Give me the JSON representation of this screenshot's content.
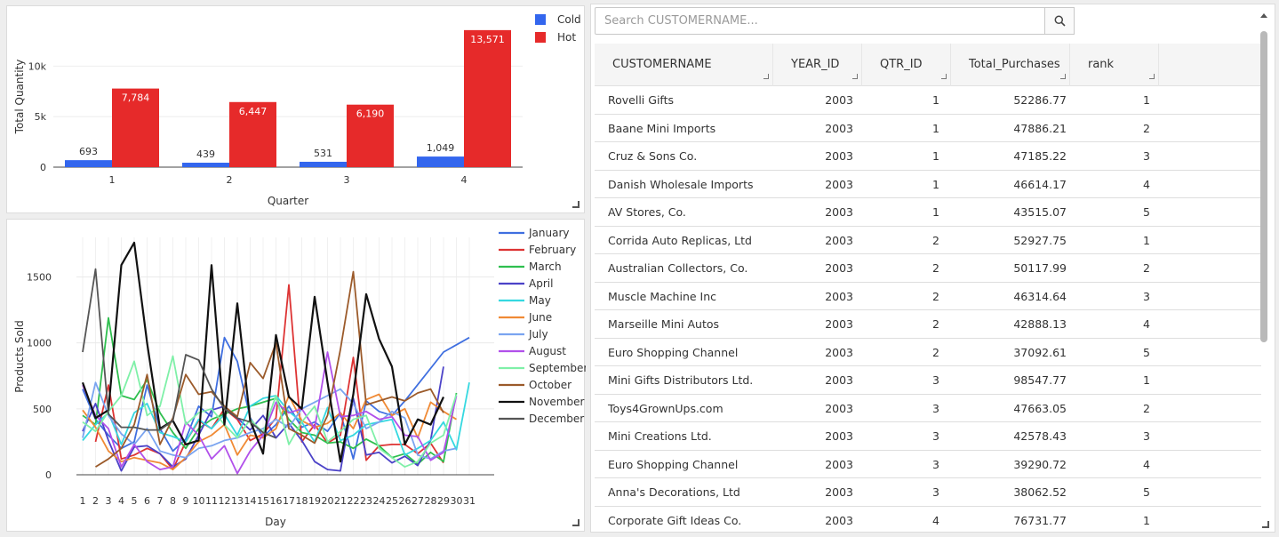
{
  "bar_chart": {
    "chart_data": {
      "type": "bar",
      "categories": [
        "1",
        "2",
        "3",
        "4"
      ],
      "series": [
        {
          "name": "Cold",
          "values": [
            693,
            439,
            531,
            1049
          ],
          "labels": [
            "693",
            "439",
            "531",
            "1,049"
          ],
          "color": "#3366ee"
        },
        {
          "name": "Hot",
          "values": [
            7784,
            6447,
            6190,
            13571
          ],
          "labels": [
            "7,784",
            "6,447",
            "6,190",
            "13,571"
          ],
          "color": "#e62a2a"
        }
      ],
      "xlabel": "Quarter",
      "ylabel": "Total Quantity",
      "ylim": [
        0,
        14000
      ],
      "yticks": [
        0,
        5000,
        10000
      ],
      "ytick_labels": [
        "0",
        "5k",
        "10k"
      ],
      "legend": "top-right",
      "grid": true
    }
  },
  "line_chart": {
    "chart_data": {
      "type": "line",
      "x": [
        1,
        2,
        3,
        4,
        5,
        6,
        7,
        8,
        9,
        10,
        11,
        12,
        13,
        14,
        15,
        16,
        17,
        18,
        19,
        20,
        21,
        22,
        23,
        24,
        25,
        26,
        27,
        28,
        29,
        30,
        31
      ],
      "xlabel": "Day",
      "ylabel": "Products Sold",
      "ylim": [
        0,
        1800
      ],
      "yticks": [
        0,
        500,
        1000,
        1500
      ],
      "ytick_labels": [
        "0",
        "500",
        "1000",
        "1500"
      ],
      "legend": "right",
      "grid": true,
      "series": [
        {
          "name": "January",
          "color": "#3f6fe0",
          "x": [
            1,
            2,
            3,
            4,
            5,
            6,
            7,
            8,
            9,
            10,
            11,
            12,
            13,
            14,
            15,
            16,
            17,
            18,
            19,
            20,
            21,
            22,
            23,
            24,
            25,
            26,
            29,
            31
          ],
          "values": [
            650,
            420,
            300,
            200,
            250,
            680,
            350,
            180,
            270,
            520,
            440,
            1040,
            860,
            430,
            290,
            380,
            520,
            360,
            400,
            330,
            470,
            120,
            560,
            480,
            450,
            560,
            930,
            1040
          ]
        },
        {
          "name": "February",
          "color": "#dd3333",
          "x": [
            2,
            3,
            4,
            5,
            6,
            7,
            8,
            9,
            10,
            11,
            12,
            13,
            14,
            15,
            16,
            17,
            18,
            19,
            20,
            21,
            22,
            23,
            24,
            25,
            26,
            27,
            28,
            29
          ],
          "values": [
            250,
            680,
            120,
            150,
            200,
            160,
            40,
            250,
            410,
            350,
            500,
            420,
            260,
            310,
            430,
            1440,
            250,
            380,
            240,
            300,
            890,
            110,
            220,
            230,
            230,
            160,
            240,
            90
          ]
        },
        {
          "name": "March",
          "color": "#2fbf4f",
          "x": [
            1,
            2,
            3,
            4,
            5,
            6,
            7,
            8,
            9,
            10,
            11,
            12,
            13,
            14,
            15,
            16,
            17,
            18,
            19,
            20,
            21,
            22,
            23,
            24,
            25,
            26,
            27,
            28,
            29,
            30
          ],
          "values": [
            450,
            380,
            1190,
            600,
            570,
            720,
            470,
            320,
            200,
            350,
            420,
            460,
            500,
            520,
            550,
            580,
            420,
            320,
            300,
            240,
            250,
            200,
            270,
            220,
            130,
            160,
            80,
            170,
            100,
            620
          ]
        },
        {
          "name": "April",
          "color": "#4b42c8",
          "x": [
            1,
            2,
            3,
            4,
            5,
            6,
            7,
            8,
            9,
            10,
            11,
            12,
            13,
            14,
            15,
            16,
            17,
            18,
            19,
            20,
            21,
            22,
            23,
            24,
            25,
            26,
            27,
            28,
            29
          ],
          "values": [
            330,
            540,
            260,
            30,
            210,
            220,
            160,
            60,
            120,
            300,
            490,
            520,
            430,
            340,
            450,
            280,
            390,
            260,
            100,
            40,
            30,
            580,
            150,
            170,
            90,
            140,
            70,
            260,
            820
          ]
        },
        {
          "name": "May",
          "color": "#35d8e0",
          "x": [
            1,
            2,
            3,
            4,
            5,
            6,
            7,
            8,
            9,
            10,
            11,
            12,
            13,
            14,
            15,
            16,
            17,
            18,
            19,
            20,
            21,
            22,
            23,
            24,
            25,
            26,
            27,
            28,
            29,
            30,
            31
          ],
          "values": [
            260,
            380,
            470,
            230,
            470,
            540,
            320,
            290,
            250,
            420,
            350,
            460,
            300,
            520,
            580,
            600,
            480,
            400,
            250,
            510,
            260,
            300,
            380,
            400,
            420,
            150,
            200,
            260,
            400,
            190,
            700
          ]
        },
        {
          "name": "June",
          "color": "#f08a35",
          "x": [
            1,
            2,
            3,
            4,
            5,
            6,
            7,
            8,
            9,
            10,
            11,
            12,
            13,
            14,
            15,
            16,
            17,
            18,
            19,
            20,
            21,
            22,
            23,
            24,
            25,
            26,
            27,
            28,
            29,
            30
          ],
          "values": [
            490,
            360,
            180,
            100,
            130,
            110,
            90,
            40,
            130,
            250,
            300,
            380,
            150,
            300,
            280,
            350,
            600,
            410,
            360,
            390,
            470,
            350,
            570,
            610,
            450,
            500,
            280,
            550,
            480,
            420
          ]
        },
        {
          "name": "July",
          "color": "#7aa4f0",
          "x": [
            1,
            2,
            3,
            4,
            5,
            6,
            7,
            8,
            9,
            10,
            11,
            12,
            13,
            14,
            15,
            16,
            17,
            18,
            19,
            20,
            21,
            22,
            23,
            24,
            25,
            26,
            27,
            28,
            29,
            30
          ],
          "values": [
            280,
            700,
            450,
            310,
            230,
            350,
            180,
            150,
            130,
            200,
            220,
            260,
            280,
            320,
            350,
            420,
            360,
            500,
            550,
            600,
            650,
            540,
            350,
            400,
            480,
            430,
            150,
            120,
            180,
            200
          ]
        },
        {
          "name": "August",
          "color": "#b150ea",
          "x": [
            1,
            2,
            3,
            4,
            5,
            6,
            7,
            8,
            9,
            10,
            11,
            12,
            13,
            14,
            15,
            16,
            17,
            18,
            19,
            20,
            21,
            22,
            23,
            24,
            25,
            26,
            27,
            28,
            29,
            30
          ],
          "values": [
            680,
            450,
            350,
            60,
            230,
            100,
            40,
            60,
            400,
            300,
            120,
            220,
            10,
            180,
            300,
            550,
            470,
            500,
            350,
            930,
            440,
            450,
            480,
            420,
            440,
            300,
            290,
            110,
            170,
            600
          ]
        },
        {
          "name": "September",
          "color": "#7ff0a8",
          "x": [
            1,
            2,
            3,
            4,
            5,
            6,
            7,
            8,
            9,
            10,
            11,
            12,
            13,
            14,
            15,
            16,
            17,
            18,
            19,
            20,
            21,
            22,
            23,
            24,
            25,
            26,
            27,
            28,
            29,
            30
          ],
          "values": [
            400,
            330,
            480,
            600,
            860,
            450,
            520,
            900,
            380,
            470,
            500,
            380,
            280,
            420,
            320,
            600,
            230,
            400,
            520,
            250,
            330,
            420,
            450,
            200,
            130,
            60,
            100,
            240,
            300,
            610
          ]
        },
        {
          "name": "October",
          "color": "#9b5a2a",
          "x": [
            2,
            3,
            4,
            5,
            6,
            7,
            8,
            9,
            10,
            11,
            12,
            13,
            14,
            15,
            16,
            17,
            18,
            19,
            20,
            21,
            22,
            23,
            24,
            25,
            26,
            27,
            28,
            29
          ],
          "values": [
            60,
            120,
            200,
            380,
            760,
            230,
            430,
            760,
            610,
            630,
            520,
            440,
            850,
            730,
            1000,
            350,
            300,
            240,
            450,
            950,
            1540,
            530,
            560,
            590,
            560,
            620,
            650,
            470
          ]
        },
        {
          "name": "November",
          "color": "#111111",
          "x": [
            1,
            2,
            3,
            4,
            5,
            6,
            7,
            8,
            9,
            10,
            11,
            12,
            13,
            14,
            15,
            16,
            17,
            18,
            19,
            20,
            21,
            22,
            23,
            24,
            25,
            26,
            27,
            28,
            29
          ],
          "values": [
            700,
            430,
            490,
            1590,
            1760,
            1000,
            350,
            410,
            230,
            260,
            1590,
            380,
            1300,
            410,
            160,
            1060,
            590,
            500,
            1350,
            700,
            100,
            610,
            1370,
            1030,
            820,
            230,
            420,
            380,
            590
          ]
        },
        {
          "name": "December",
          "color": "#555555",
          "x": [
            1,
            2,
            3,
            4,
            5,
            6,
            7,
            8,
            9,
            10,
            11,
            12,
            13,
            14,
            15,
            16
          ],
          "values": [
            930,
            1560,
            460,
            360,
            360,
            340,
            340,
            410,
            910,
            870,
            650,
            500,
            430,
            400,
            320,
            280
          ]
        }
      ]
    }
  },
  "table": {
    "search_placeholder": "Search CUSTOMERNAME...",
    "columns": [
      "CUSTOMERNAME",
      "YEAR_ID",
      "QTR_ID",
      "Total_Purchases",
      "rank"
    ],
    "rows": [
      [
        "Rovelli Gifts",
        "2003",
        "1",
        "52286.77",
        "1"
      ],
      [
        "Baane Mini Imports",
        "2003",
        "1",
        "47886.21",
        "2"
      ],
      [
        "Cruz & Sons Co.",
        "2003",
        "1",
        "47185.22",
        "3"
      ],
      [
        "Danish Wholesale Imports",
        "2003",
        "1",
        "46614.17",
        "4"
      ],
      [
        "AV Stores, Co.",
        "2003",
        "1",
        "43515.07",
        "5"
      ],
      [
        "Corrida Auto Replicas, Ltd",
        "2003",
        "2",
        "52927.75",
        "1"
      ],
      [
        "Australian Collectors, Co.",
        "2003",
        "2",
        "50117.99",
        "2"
      ],
      [
        "Muscle Machine Inc",
        "2003",
        "2",
        "46314.64",
        "3"
      ],
      [
        "Marseille Mini Autos",
        "2003",
        "2",
        "42888.13",
        "4"
      ],
      [
        "Euro Shopping Channel",
        "2003",
        "2",
        "37092.61",
        "5"
      ],
      [
        "Mini Gifts Distributors Ltd.",
        "2003",
        "3",
        "98547.77",
        "1"
      ],
      [
        "Toys4GrownUps.com",
        "2003",
        "3",
        "47663.05",
        "2"
      ],
      [
        "Mini Creations Ltd.",
        "2003",
        "3",
        "42578.43",
        "3"
      ],
      [
        "Euro Shopping Channel",
        "2003",
        "3",
        "39290.72",
        "4"
      ],
      [
        "Anna's Decorations, Ltd",
        "2003",
        "3",
        "38062.52",
        "5"
      ],
      [
        "Corporate Gift Ideas Co.",
        "2003",
        "4",
        "76731.77",
        "1"
      ]
    ]
  }
}
